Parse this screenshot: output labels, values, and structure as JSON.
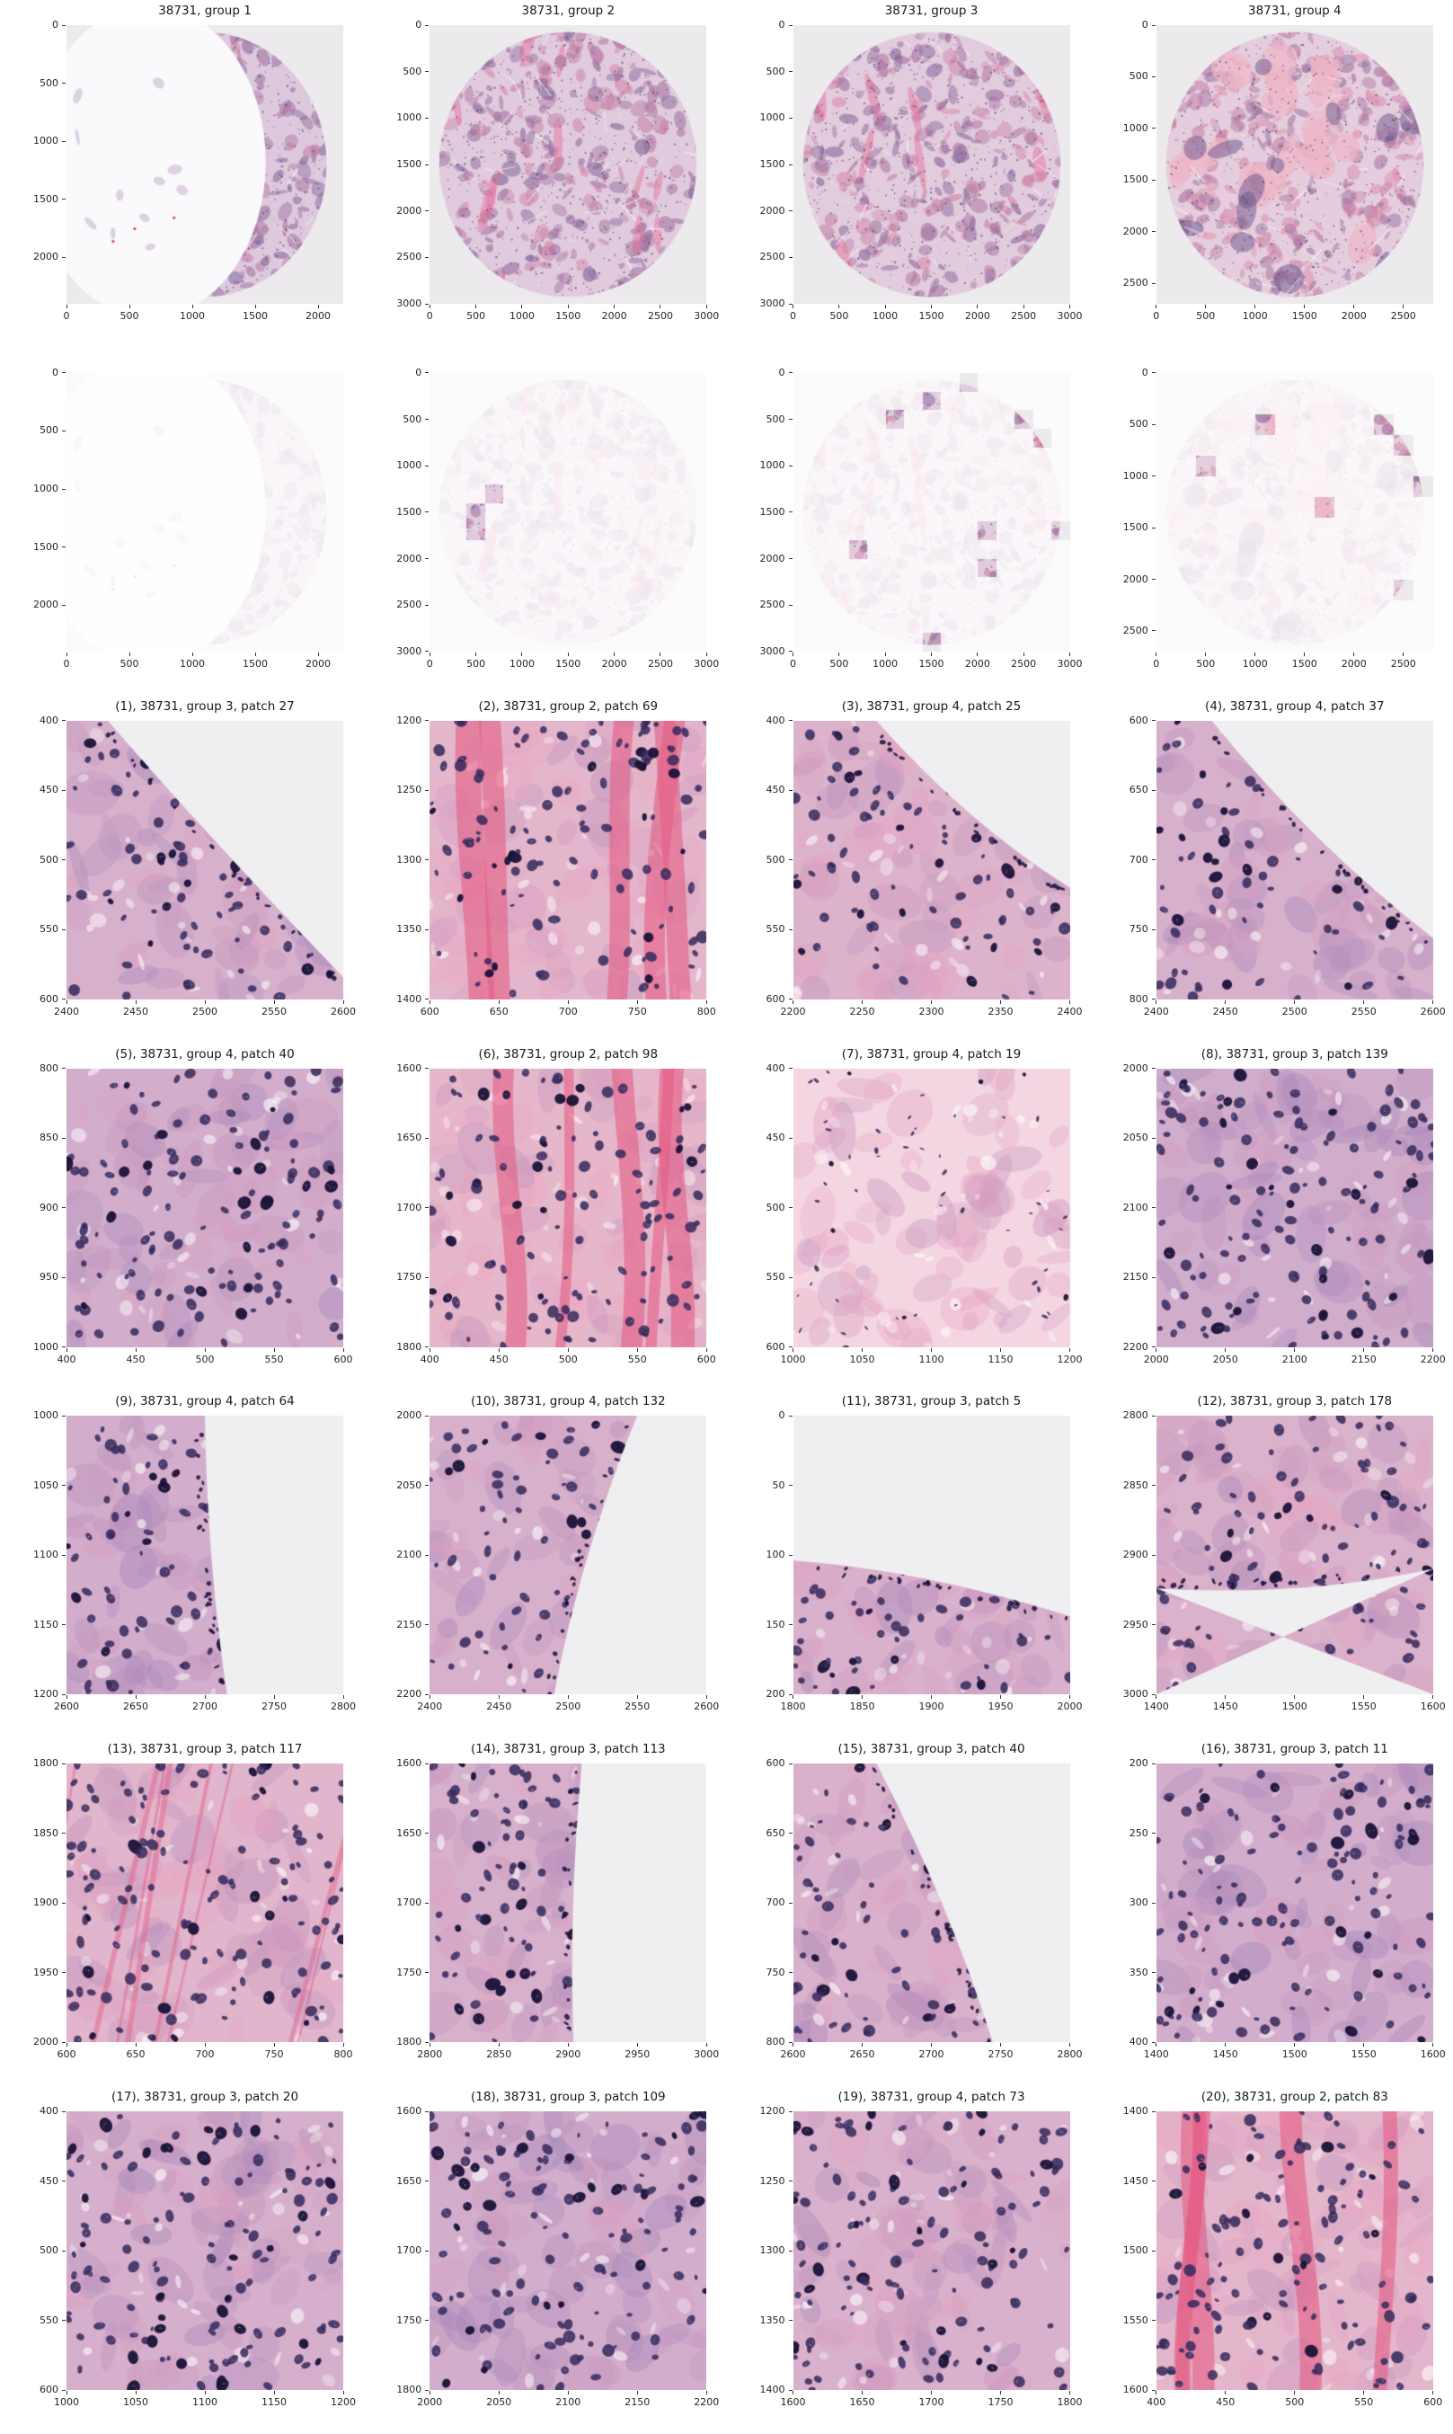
{
  "figure": {
    "slide_id": "38731",
    "background": "#ffffff",
    "title_color": "#1a1a1a",
    "tick_color": "#262626",
    "image_bg": "#eceaed",
    "patch_bg": "#efeef0",
    "mask_fade": 0.16,
    "hne_purple": "#7b5e96",
    "hne_pink": "#e59ab8",
    "nucleus_color": "#362a58"
  },
  "chart_data": {
    "type": "image-grid",
    "description": "H&E stained tissue cores (top row), masked cores with highlighted attention patches (second row), and 20 zoomed patches for slide 38731",
    "grid": {
      "rows": 7,
      "cols": 4
    },
    "overview_plots": [
      {
        "id": 1,
        "title": "38731, group 1",
        "xmax": 2200,
        "ymax": 2400,
        "tick_step": 500,
        "style": {
          "pink": 0.3,
          "density": 0.75,
          "shape": "crescent"
        },
        "highlights": []
      },
      {
        "id": 2,
        "title": "38731, group 2",
        "xmax": 3000,
        "ymax": 3000,
        "tick_step": 500,
        "style": {
          "pink": 0.45,
          "density": 0.9,
          "shape": "disc"
        },
        "highlights": [
          [
            600,
            1200
          ],
          [
            400,
            1400
          ],
          [
            400,
            1600
          ]
        ]
      },
      {
        "id": 3,
        "title": "38731, group 3",
        "xmax": 3000,
        "ymax": 3000,
        "tick_step": 500,
        "style": {
          "pink": 0.5,
          "density": 0.85,
          "shape": "disc"
        },
        "highlights": [
          [
            1800,
            0
          ],
          [
            1400,
            200
          ],
          [
            1000,
            400
          ],
          [
            2400,
            400
          ],
          [
            2600,
            600
          ],
          [
            2000,
            1600
          ],
          [
            2800,
            1600
          ],
          [
            600,
            1800
          ],
          [
            2000,
            2000
          ],
          [
            1400,
            2800
          ]
        ]
      },
      {
        "id": 4,
        "title": "38731, group 4",
        "xmax": 2800,
        "ymax": 2700,
        "tick_step": 500,
        "style": {
          "pink": 0.62,
          "density": 0.7,
          "shape": "disc",
          "blotchy": true
        },
        "highlights": [
          [
            1000,
            400
          ],
          [
            2200,
            400
          ],
          [
            2400,
            600
          ],
          [
            400,
            800
          ],
          [
            2600,
            1000
          ],
          [
            1600,
            1200
          ],
          [
            2400,
            2000
          ]
        ]
      }
    ],
    "patch_plots": [
      {
        "n": 1,
        "title": "(1), 38731, group 3, patch 27",
        "group": 3,
        "patch": 27,
        "x": [
          2400,
          2600
        ],
        "y": [
          400,
          600
        ],
        "tick_step": 50,
        "style": {
          "pink": 0.45,
          "density": 0.6,
          "bg": "tr",
          "frac": [
            0.15,
            0.92
          ]
        }
      },
      {
        "n": 2,
        "title": "(2), 38731, group 2, patch 69",
        "group": 2,
        "patch": 69,
        "x": [
          600,
          800
        ],
        "y": [
          1200,
          1400
        ],
        "tick_step": 50,
        "style": {
          "pink": 0.8,
          "density": 0.75,
          "bands": "v"
        }
      },
      {
        "n": 3,
        "title": "(3), 38731, group 4, patch 25",
        "group": 4,
        "patch": 25,
        "x": [
          2200,
          2400
        ],
        "y": [
          400,
          600
        ],
        "tick_step": 50,
        "style": {
          "pink": 0.6,
          "density": 0.65,
          "bg": "tr",
          "frac": [
            0.3,
            0.6
          ]
        }
      },
      {
        "n": 4,
        "title": "(4), 38731, group 4, patch 37",
        "group": 4,
        "patch": 37,
        "x": [
          2400,
          2600
        ],
        "y": [
          600,
          800
        ],
        "tick_step": 50,
        "style": {
          "pink": 0.45,
          "density": 0.55,
          "bg": "tr",
          "frac": [
            0.2,
            0.78
          ]
        }
      },
      {
        "n": 5,
        "title": "(5), 38731, group 4, patch 40",
        "group": 4,
        "patch": 40,
        "x": [
          400,
          600
        ],
        "y": [
          800,
          1000
        ],
        "tick_step": 50,
        "style": {
          "pink": 0.35,
          "density": 0.85
        }
      },
      {
        "n": 6,
        "title": "(6), 38731, group 2, patch 98",
        "group": 2,
        "patch": 98,
        "x": [
          400,
          600
        ],
        "y": [
          1600,
          1800
        ],
        "tick_step": 50,
        "style": {
          "pink": 0.85,
          "density": 0.75,
          "bands": "v"
        }
      },
      {
        "n": 7,
        "title": "(7), 38731, group 4, patch 19",
        "group": 4,
        "patch": 19,
        "x": [
          1000,
          1200
        ],
        "y": [
          400,
          600
        ],
        "tick_step": 50,
        "style": {
          "pink": 0.9,
          "density": 0.22,
          "sparse": true
        }
      },
      {
        "n": 8,
        "title": "(8), 38731, group 3, patch 139",
        "group": 3,
        "patch": 139,
        "x": [
          2000,
          2200
        ],
        "y": [
          2000,
          2200
        ],
        "tick_step": 50,
        "style": {
          "pink": 0.3,
          "density": 0.9
        }
      },
      {
        "n": 9,
        "title": "(9), 38731, group 4, patch 64",
        "group": 4,
        "patch": 64,
        "x": [
          2600,
          2800
        ],
        "y": [
          1000,
          1200
        ],
        "tick_step": 50,
        "style": {
          "pink": 0.35,
          "density": 0.65,
          "bg": "r",
          "frac": [
            0.5,
            0.58
          ]
        }
      },
      {
        "n": 10,
        "title": "(10), 38731, group 4, patch 132",
        "group": 4,
        "patch": 132,
        "x": [
          2400,
          2600
        ],
        "y": [
          2000,
          2200
        ],
        "tick_step": 50,
        "style": {
          "pink": 0.45,
          "density": 0.65,
          "bg": "r",
          "frac": [
            0.75,
            0.45
          ]
        }
      },
      {
        "n": 11,
        "title": "(11), 38731, group 3, patch 5",
        "group": 3,
        "patch": 5,
        "x": [
          1800,
          2000
        ],
        "y": [
          0,
          200
        ],
        "tick_step": 50,
        "style": {
          "pink": 0.5,
          "density": 0.6,
          "bg": "t",
          "frac": [
            0.52,
            0.72
          ]
        }
      },
      {
        "n": 12,
        "title": "(12), 38731, group 3, patch 178",
        "group": 3,
        "patch": 178,
        "x": [
          1400,
          1600
        ],
        "y": [
          2800,
          3000
        ],
        "tick_step": 50,
        "style": {
          "pink": 0.55,
          "density": 0.7,
          "bg": "b",
          "frac": [
            0.62,
            0.55
          ]
        }
      },
      {
        "n": 13,
        "title": "(13), 38731, group 3, patch 117",
        "group": 3,
        "patch": 117,
        "x": [
          600,
          800
        ],
        "y": [
          1800,
          2000
        ],
        "tick_step": 50,
        "style": {
          "pink": 0.7,
          "density": 0.9,
          "bands": "d"
        }
      },
      {
        "n": 14,
        "title": "(14), 38731, group 3, patch 113",
        "group": 3,
        "patch": 113,
        "x": [
          2800,
          3000
        ],
        "y": [
          1600,
          1800
        ],
        "tick_step": 50,
        "style": {
          "pink": 0.45,
          "density": 0.8,
          "bg": "r",
          "frac": [
            0.55,
            0.52
          ]
        }
      },
      {
        "n": 15,
        "title": "(15), 38731, group 3, patch 40",
        "group": 3,
        "patch": 40,
        "x": [
          2600,
          2800
        ],
        "y": [
          600,
          800
        ],
        "tick_step": 50,
        "style": {
          "pink": 0.5,
          "density": 0.65,
          "bg": "r",
          "frac": [
            0.3,
            0.72
          ]
        }
      },
      {
        "n": 16,
        "title": "(16), 38731, group 3, patch 11",
        "group": 3,
        "patch": 11,
        "x": [
          1400,
          1600
        ],
        "y": [
          200,
          400
        ],
        "tick_step": 50,
        "style": {
          "pink": 0.35,
          "density": 0.85
        }
      },
      {
        "n": 17,
        "title": "(17), 38731, group 3, patch 20",
        "group": 3,
        "patch": 20,
        "x": [
          1000,
          1200
        ],
        "y": [
          400,
          600
        ],
        "tick_step": 50,
        "style": {
          "pink": 0.4,
          "density": 0.85
        }
      },
      {
        "n": 18,
        "title": "(18), 38731, group 3, patch 109",
        "group": 3,
        "patch": 109,
        "x": [
          2000,
          2200
        ],
        "y": [
          1600,
          1800
        ],
        "tick_step": 50,
        "style": {
          "pink": 0.35,
          "density": 0.85
        }
      },
      {
        "n": 19,
        "title": "(19), 38731, group 4, patch 73",
        "group": 4,
        "patch": 73,
        "x": [
          1600,
          1800
        ],
        "y": [
          1200,
          1400
        ],
        "tick_step": 50,
        "style": {
          "pink": 0.5,
          "density": 0.8
        }
      },
      {
        "n": 20,
        "title": "(20), 38731, group 2, patch 83",
        "group": 2,
        "patch": 83,
        "x": [
          400,
          600
        ],
        "y": [
          1400,
          1600
        ],
        "tick_step": 50,
        "style": {
          "pink": 0.8,
          "density": 0.8,
          "bands": "v"
        }
      }
    ]
  }
}
